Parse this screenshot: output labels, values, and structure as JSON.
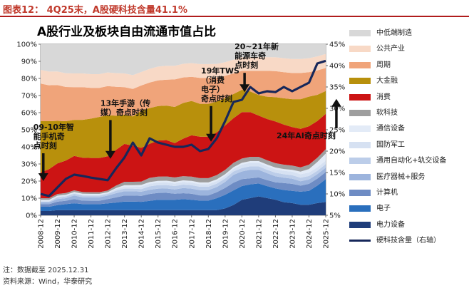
{
  "header": {
    "figure_title": "图表12：  4Q25末，A股硬科技含量41.1%"
  },
  "chart_title": "A股行业及板块自由流通市值占比",
  "footnotes": {
    "note": "注：数据截至 2025.12.31",
    "source": "资料来源：Wind，华泰研究"
  },
  "colors": {
    "电力设备": "#1f3d7a",
    "电子": "#2a6fbd",
    "计算机": "#6e8cc4",
    "医疗器械+服务": "#9cb4dd",
    "通用自动化+轨交设备": "#bccde9",
    "国防军工": "#d6e1f2",
    "通信设备": "#e3ebf7",
    "软科技": "#9e9e9e",
    "消费": "#cc1414",
    "大金融": "#b8900c",
    "周期": "#f0a47a",
    "公共产业": "#f8d9c6",
    "中低端制造": "#d8d8d8",
    "line": "#16275a"
  },
  "chart_data": {
    "type": "area",
    "title": "A股行业及板块自由流通市值占比",
    "x": [
      "2008-12",
      "2009-06",
      "2009-12",
      "2010-06",
      "2010-12",
      "2011-06",
      "2011-12",
      "2012-06",
      "2012-12",
      "2013-06",
      "2013-12",
      "2014-06",
      "2014-12",
      "2015-06",
      "2015-12",
      "2016-06",
      "2016-12",
      "2017-06",
      "2017-12",
      "2018-06",
      "2018-12",
      "2019-06",
      "2019-12",
      "2020-06",
      "2020-12",
      "2021-06",
      "2021-12",
      "2022-06",
      "2022-12",
      "2023-06",
      "2023-12",
      "2024-06",
      "2024-12",
      "2025-06",
      "2025-12"
    ],
    "xticks": [
      "2008-12",
      "2009-12",
      "2010-12",
      "2011-12",
      "2012-12",
      "2013-12",
      "2014-12",
      "2015-12",
      "2016-12",
      "2017-12",
      "2018-12",
      "2019-12",
      "2020-12",
      "2021-12",
      "2022-12",
      "2023-12",
      "2024-12",
      "2025-12"
    ],
    "y_left": {
      "ylim": [
        0,
        100
      ],
      "ticks": [
        "0%",
        "10%",
        "20%",
        "30%",
        "40%",
        "50%",
        "60%",
        "70%",
        "80%",
        "90%",
        "100%"
      ]
    },
    "y_right": {
      "ylim": [
        5,
        45
      ],
      "ticks": [
        "5%",
        "10%",
        "15%",
        "20%",
        "25%",
        "30%",
        "35%",
        "40%",
        "45%"
      ]
    },
    "series": [
      {
        "name": "电力设备",
        "values": [
          2.5,
          2.5,
          3,
          3,
          3,
          3,
          3,
          3,
          3,
          3,
          3,
          3,
          3,
          3,
          3,
          3,
          3,
          3,
          3,
          3,
          3,
          3,
          4,
          6,
          9,
          10,
          11,
          10,
          9,
          7.5,
          7,
          6,
          6,
          7,
          7.5
        ]
      },
      {
        "name": "电子",
        "values": [
          2.5,
          2.5,
          3,
          3.5,
          4,
          3.5,
          3.5,
          3.5,
          4,
          4.5,
          5,
          5,
          5,
          5.5,
          6,
          6,
          6,
          6.5,
          6,
          5.5,
          5.5,
          7,
          8,
          8.5,
          8,
          8,
          7.5,
          7,
          6.5,
          7,
          7,
          7.5,
          8,
          10,
          13
        ]
      },
      {
        "name": "计算机",
        "values": [
          1.5,
          1.5,
          2,
          2,
          2.5,
          2,
          2,
          2,
          2.5,
          3,
          3.5,
          3.5,
          3.5,
          4,
          4,
          4,
          3.5,
          3.5,
          3.5,
          3,
          3,
          3.5,
          4,
          4.5,
          4,
          3.5,
          3.5,
          3.5,
          3.5,
          4,
          4,
          3.5,
          4,
          4,
          4
        ]
      },
      {
        "name": "医疗器械+服务",
        "values": [
          1,
          1,
          1.5,
          1.5,
          2,
          2,
          2,
          2,
          2,
          2.5,
          2.5,
          2.5,
          2.5,
          2.5,
          2.5,
          2.5,
          2.5,
          3,
          3,
          3,
          3,
          3,
          3.5,
          4.5,
          4.5,
          5,
          4.5,
          4,
          3.5,
          3,
          3,
          2.5,
          2.5,
          2.5,
          2.5
        ]
      },
      {
        "name": "通用自动化+轨交设备",
        "values": [
          0.5,
          0.5,
          1,
          1,
          1,
          1,
          1,
          1,
          1,
          1.5,
          1.5,
          1.5,
          1.5,
          2,
          2,
          2,
          2,
          2,
          2,
          2,
          2,
          2,
          2,
          2,
          2,
          2,
          2,
          2,
          2,
          2,
          2,
          2,
          2,
          2,
          2
        ]
      },
      {
        "name": "国防军工",
        "values": [
          0.5,
          0.5,
          0.5,
          0.5,
          0.5,
          0.5,
          0.5,
          0.5,
          0.5,
          1,
          1,
          1,
          1.5,
          1.5,
          1.5,
          1.5,
          1.5,
          1.5,
          1.5,
          1.5,
          1.5,
          1.5,
          1.5,
          1.5,
          2,
          2,
          2,
          2,
          2,
          2,
          2,
          2,
          2,
          2,
          2
        ]
      },
      {
        "name": "通信设备",
        "values": [
          0.5,
          0.5,
          0.5,
          0.5,
          0.5,
          0.5,
          0.5,
          0.5,
          0.5,
          0.5,
          1,
          1,
          1,
          1,
          1,
          1,
          1,
          1,
          1,
          1,
          1,
          1,
          1,
          1,
          1,
          1,
          1,
          1,
          1,
          1,
          1,
          1.5,
          2,
          3,
          4
        ]
      },
      {
        "name": "软科技",
        "values": [
          1,
          1,
          1,
          1,
          1,
          1,
          1,
          1,
          1,
          1.5,
          2,
          2,
          2,
          2.5,
          2.5,
          2.5,
          2.5,
          2.5,
          2.5,
          2.5,
          2.5,
          2.5,
          2.5,
          2.5,
          2.5,
          2.5,
          2.5,
          2.5,
          2.5,
          2.5,
          2.5,
          2.5,
          2.5,
          2.5,
          2.5
        ]
      },
      {
        "name": "消费",
        "values": [
          15,
          17,
          18,
          19,
          20,
          20,
          20,
          20,
          20,
          21,
          22,
          21,
          20,
          20,
          21,
          21,
          20,
          22,
          24,
          24,
          24,
          25,
          26,
          26,
          27,
          26,
          24,
          24,
          24,
          23,
          22,
          22,
          22,
          21,
          20
        ]
      },
      {
        "name": "大金融",
        "values": [
          30,
          28,
          25,
          23,
          21,
          22,
          23,
          24,
          24,
          20,
          17,
          17,
          22,
          21,
          20,
          20,
          21,
          21,
          20,
          19,
          19,
          18,
          16,
          14,
          13,
          12,
          12,
          13,
          14,
          15,
          16,
          17,
          17,
          15,
          13
        ]
      },
      {
        "name": "周期",
        "values": [
          22,
          21,
          21,
          20,
          19,
          19,
          18,
          17,
          17,
          17,
          16,
          16,
          15,
          15,
          15,
          15,
          16,
          15,
          14,
          15,
          15,
          14,
          13,
          12,
          11,
          12,
          14,
          15,
          15,
          15,
          15,
          15,
          14,
          14,
          13
        ]
      },
      {
        "name": "公共产业",
        "values": [
          8,
          8,
          8,
          8,
          8,
          8,
          8,
          8,
          8,
          8,
          8,
          8,
          8,
          8,
          8,
          8,
          8,
          8,
          8,
          8,
          8,
          8,
          8,
          8,
          8,
          8,
          8,
          8,
          8,
          8,
          8,
          8,
          8,
          8,
          8
        ]
      },
      {
        "name": "中低端制造",
        "values": [
          15,
          16,
          16,
          17,
          17,
          17,
          17.5,
          17.5,
          16.5,
          17,
          17,
          18,
          16.5,
          14.5,
          13,
          12.5,
          12.5,
          11.5,
          11,
          11.5,
          11.5,
          11.5,
          10.5,
          9,
          7.5,
          7.5,
          7.5,
          7.5,
          7.5,
          8,
          8.5,
          8.5,
          8,
          7,
          5.5
        ]
      },
      {
        "name": "硬科技含量（右轴）",
        "axis": "right",
        "values": [
          10,
          9.5,
          11.5,
          13.5,
          14.5,
          14.2,
          13.8,
          13.5,
          13.2,
          16,
          18.5,
          22,
          19,
          23,
          22,
          21.5,
          21,
          21,
          21.5,
          20,
          20.5,
          23,
          27,
          31.5,
          32,
          35,
          33.5,
          34,
          33.8,
          35,
          34,
          35,
          36,
          40.5,
          41.1
        ]
      }
    ],
    "legend_position": "right",
    "annotations": [
      {
        "text_lines": [
          "09-10年智",
          "能手机奇",
          "点时刻"
        ],
        "x": "2009-06",
        "y": 50,
        "arrow_to": 20
      },
      {
        "text_lines": [
          "13年手游（传",
          "媒）奇点时刻"
        ],
        "x": "2013-06",
        "y": 64,
        "arrow_to": 33
      },
      {
        "text_lines": [
          "19年TWS",
          "（消费",
          "电子）",
          "奇点时刻"
        ],
        "x": "2019-06",
        "y": 83,
        "arrow_to": 43
      },
      {
        "text_lines": [
          "20~21年新",
          "能源车奇",
          "点时刻"
        ],
        "x": "2021-06",
        "y": 97,
        "arrow_to": 72
      },
      {
        "text_lines": [
          "24年AI奇点时刻"
        ],
        "x": "2023-12",
        "y": 45,
        "arrow_to": 68
      }
    ]
  }
}
